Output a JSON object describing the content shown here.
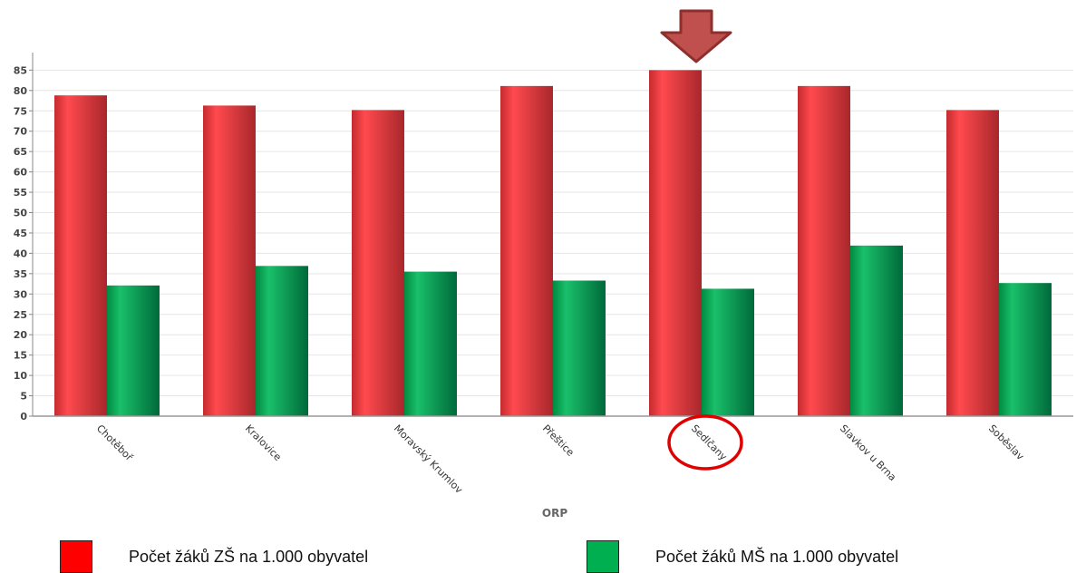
{
  "chart_data": {
    "type": "bar",
    "xlabel": "ORP",
    "ylabel": "",
    "ylim": [
      0,
      88
    ],
    "yticks": [
      0,
      5,
      10,
      15,
      20,
      25,
      30,
      35,
      40,
      45,
      50,
      55,
      60,
      65,
      70,
      75,
      80,
      85
    ],
    "categories": [
      "Chotěboř",
      "Kralovice",
      "Moravský Krumlov",
      "Přeštice",
      "Sedlčany",
      "Slavkov u Brna",
      "Soběslav"
    ],
    "series": [
      {
        "name": "Počet žáků ZŠ na 1.000 obyvatel",
        "color": "#e8383d",
        "values": [
          78.8,
          76.3,
          75.2,
          81.1,
          85.0,
          81.1,
          75.2
        ]
      },
      {
        "name": "Počet žáků MŠ na 1.000 obyvatel",
        "color": "#00a651",
        "values": [
          32.1,
          36.9,
          35.5,
          33.3,
          31.3,
          41.9,
          32.7
        ]
      }
    ],
    "grid": true,
    "legend_position": "bottom",
    "highlighted_category": "Sedlčany"
  },
  "annotation": {
    "arrow_color": "#c0504d",
    "circle_color": "#e00000"
  }
}
